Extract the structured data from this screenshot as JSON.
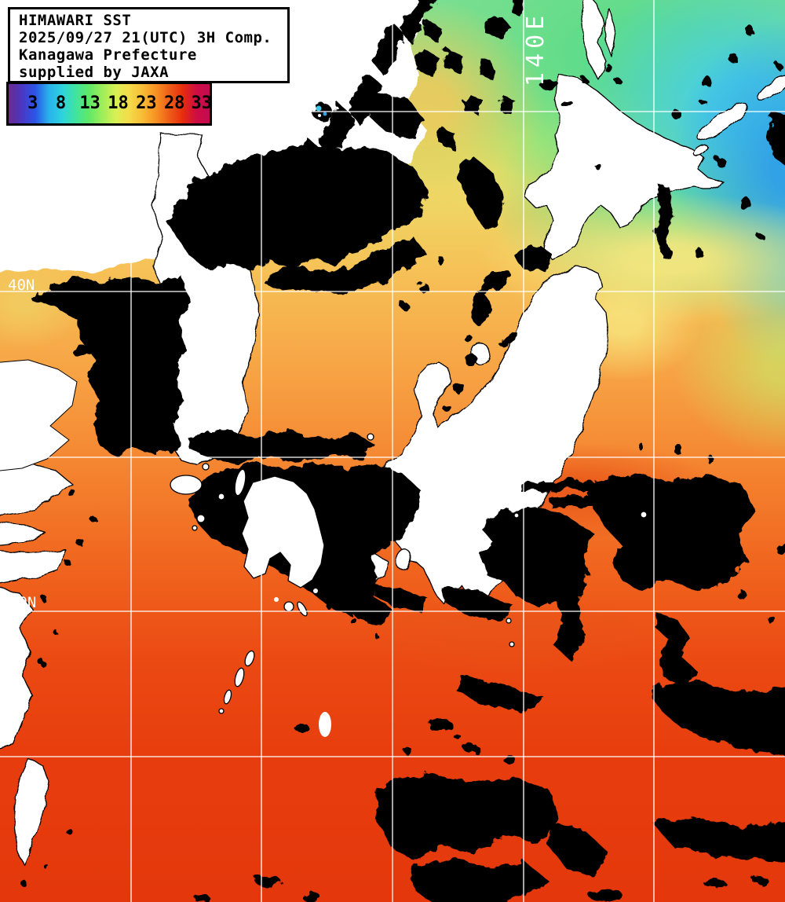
{
  "header": {
    "lines": [
      "HIMAWARI SST",
      "2025/09/27 21(UTC) 3H Comp.",
      "Kanagawa Prefecture",
      "supplied by JAXA"
    ]
  },
  "colorbar": {
    "ticks": [
      "3",
      "8",
      "13",
      "18",
      "23",
      "28",
      "33"
    ],
    "gradient": [
      "#6B2A8F",
      "#4A38C4",
      "#2B55E8",
      "#29B2EC",
      "#2ED4DE",
      "#41E3A0",
      "#5FE967",
      "#9FEE5A",
      "#D9F054",
      "#F4DB49",
      "#F7BC35",
      "#F79222",
      "#EF5D18",
      "#E62D0C",
      "#CE0D43",
      "#C40A52"
    ]
  },
  "map": {
    "lon_label": "140E",
    "lat_label_40": "40N",
    "lat_label_30": "30N",
    "grid": {
      "vlines": [
        167,
        333,
        500,
        667,
        833
      ],
      "hlines": [
        142,
        371,
        582,
        778,
        963
      ]
    },
    "colors": {
      "grid_line": "#ffffff",
      "land": "#ffffff",
      "cloud": "#000000",
      "cold_blue": "#2F9FE8",
      "cyan": "#49CFE2",
      "green": "#5FDC8A",
      "yellow_green": "#C8E968",
      "pale_yellow": "#F7E77F",
      "yellow": "#EDDA67",
      "orange": "#F7A143",
      "deep_orange": "#F4812E",
      "red_orange": "#EB4A13",
      "red": "#E4380C"
    }
  }
}
